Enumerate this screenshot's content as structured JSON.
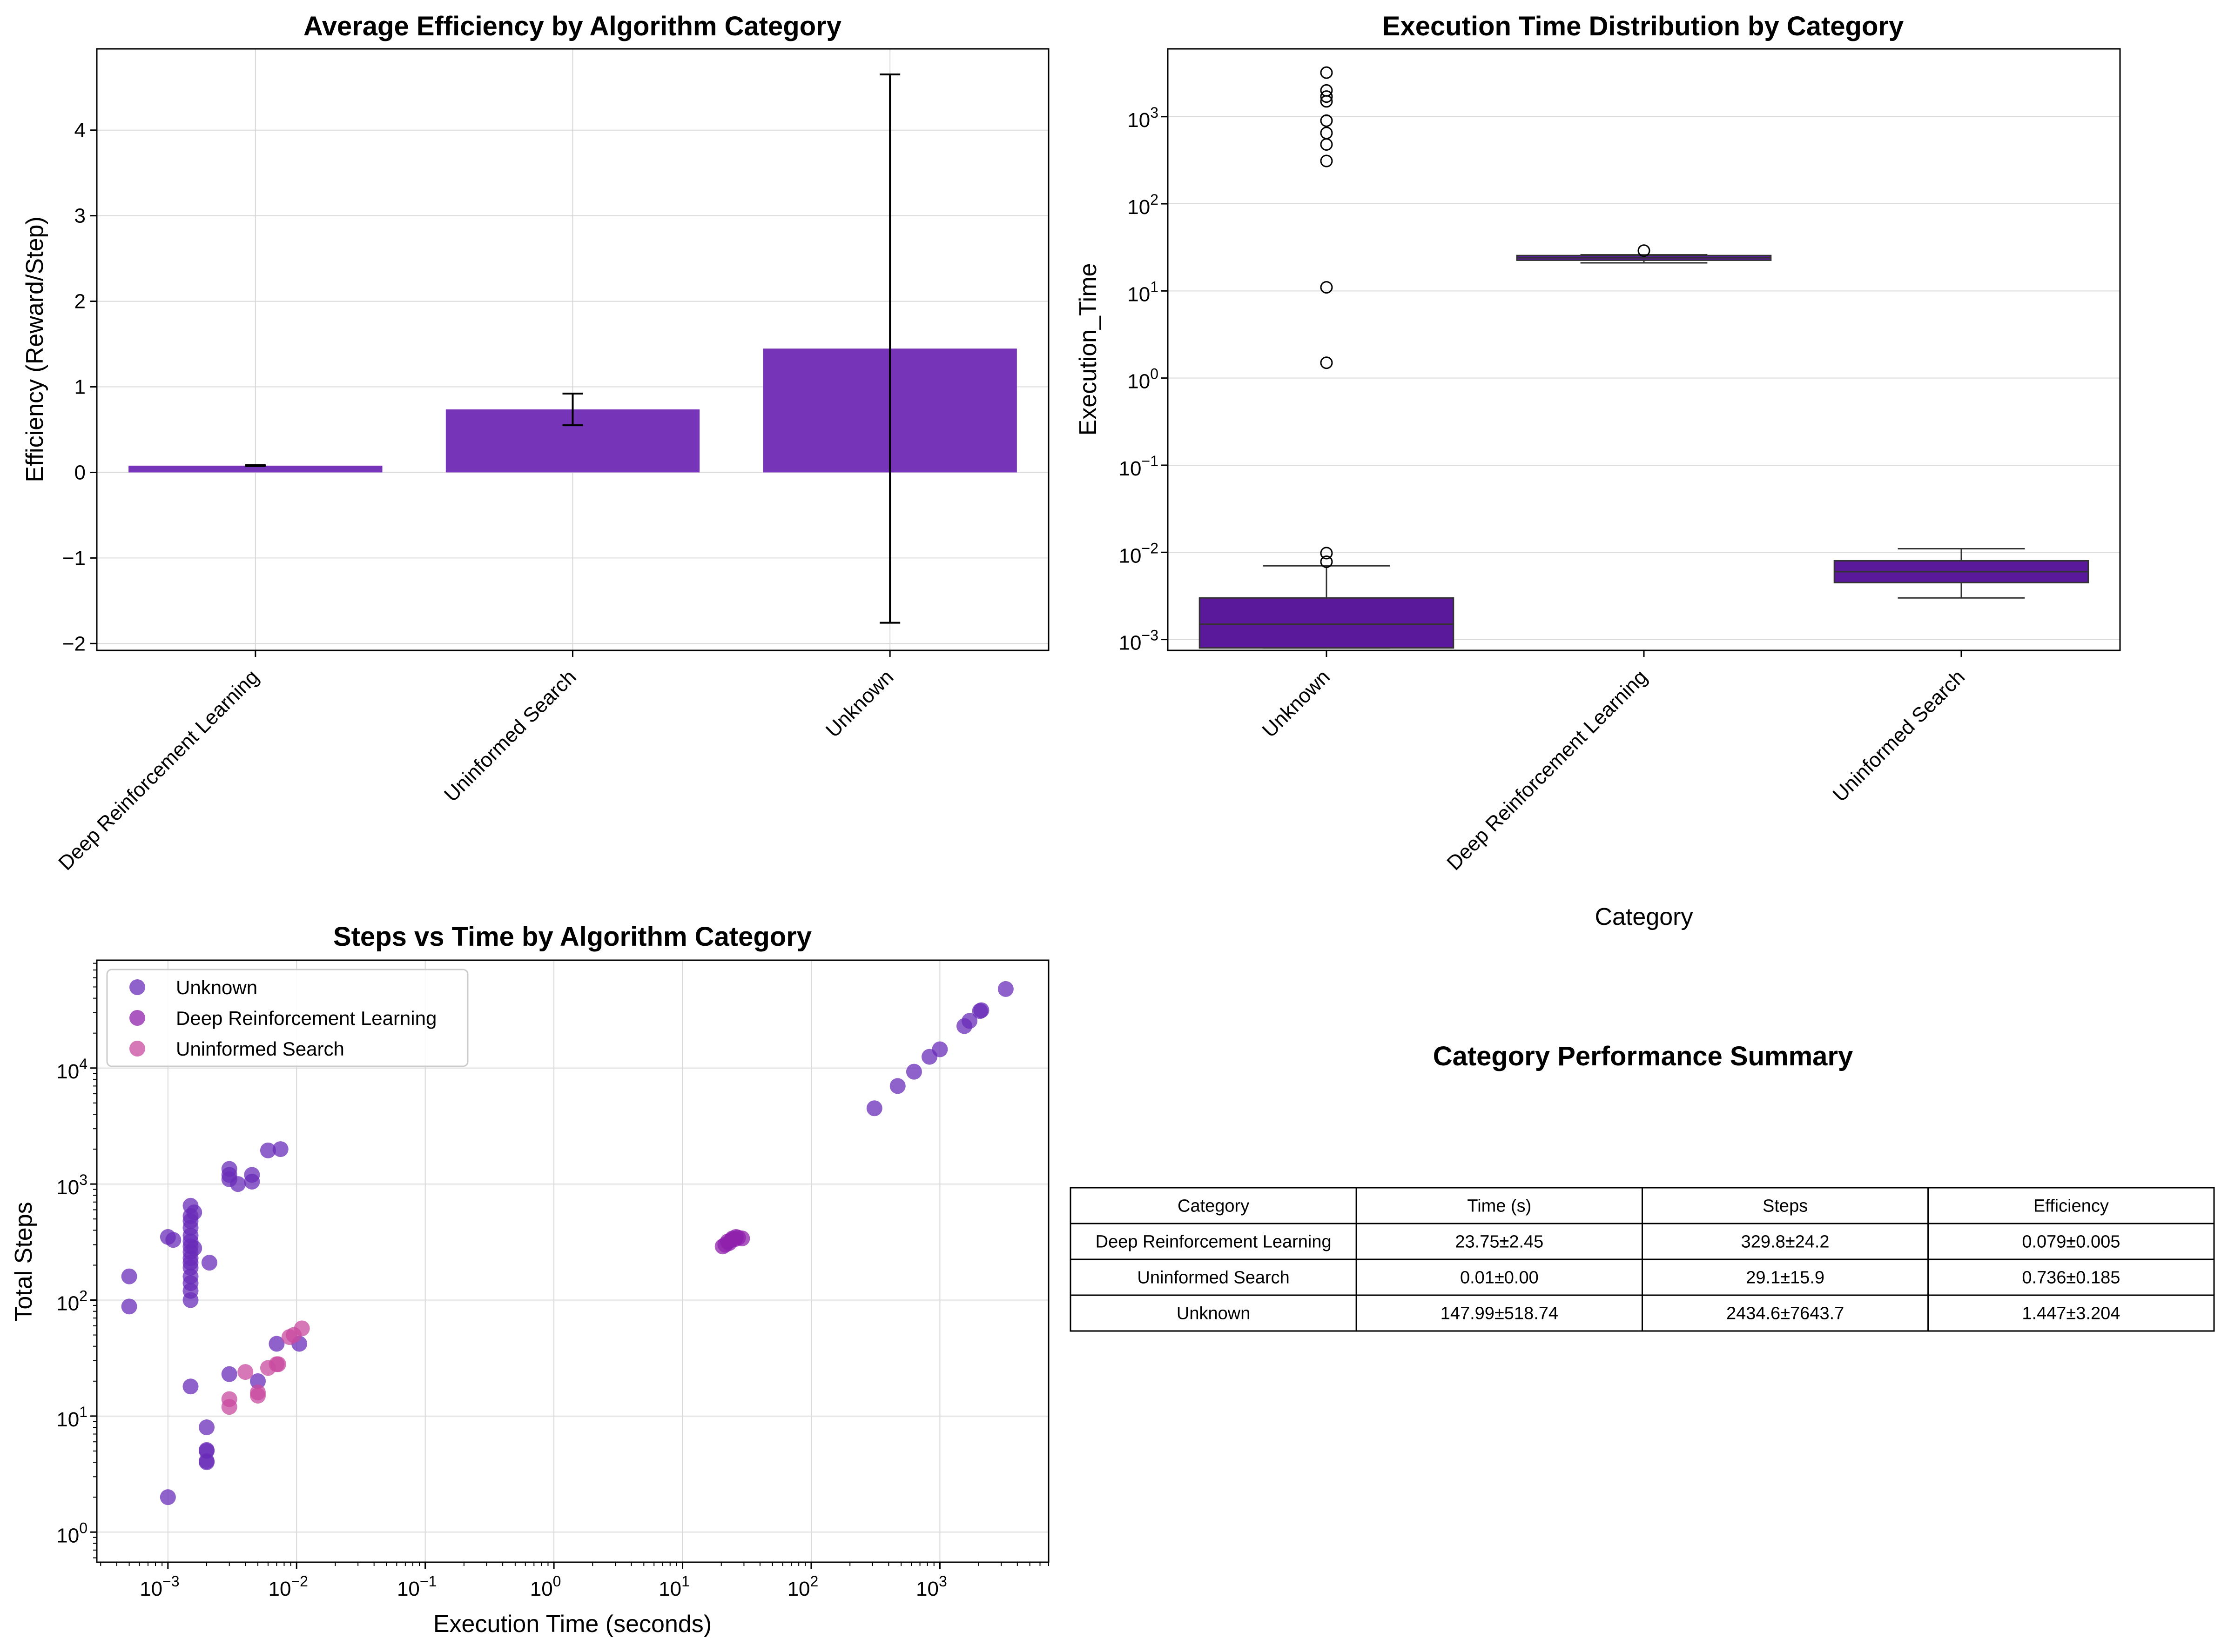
{
  "chart_data": [
    {
      "type": "bar",
      "title": "Average Efficiency by Algorithm Category",
      "xlabel": "",
      "ylabel": "Efficiency (Reward/Step)",
      "categories": [
        "Deep Reinforcement Learning",
        "Uninformed Search",
        "Unknown"
      ],
      "values": [
        0.079,
        0.736,
        1.447
      ],
      "errors": [
        0.005,
        0.185,
        3.204
      ],
      "ylim": [
        -2.08,
        4.95
      ],
      "yticks": [
        -2,
        -1,
        0,
        1,
        2,
        3,
        4
      ],
      "yticklabels": [
        "−2",
        "−1",
        "0",
        "1",
        "2",
        "3",
        "4"
      ],
      "bar_color": "#7634b8",
      "grid": true
    },
    {
      "type": "box",
      "title": "Execution Time Distribution by Category",
      "xlabel": "Category",
      "ylabel": "Execution_Time",
      "yscale": "log",
      "categories": [
        "Unknown",
        "Deep Reinforcement Learning",
        "Uninformed Search"
      ],
      "boxes": [
        {
          "category": "Unknown",
          "q1": 0.0008,
          "median": 0.0015,
          "q3": 0.003,
          "whisker_low": 0.0008,
          "whisker_high": 0.007,
          "outliers": [
            0.0078,
            0.0098,
            1.5,
            11,
            310,
            480,
            650,
            900,
            1500,
            1700,
            2000,
            3200
          ]
        },
        {
          "category": "Deep Reinforcement Learning",
          "q1": 22.5,
          "median": 24,
          "q3": 25.5,
          "whisker_low": 21,
          "whisker_high": 26,
          "outliers": [
            29
          ]
        },
        {
          "category": "Uninformed Search",
          "q1": 0.0045,
          "median": 0.006,
          "q3": 0.008,
          "whisker_low": 0.003,
          "whisker_high": 0.011,
          "outliers": []
        }
      ],
      "ylim": [
        0.00075,
        6000
      ],
      "box_color": "#5a189a",
      "grid": true
    },
    {
      "type": "scatter",
      "title": "Steps vs Time by Algorithm Category",
      "xlabel": "Execution Time (seconds)",
      "ylabel": "Total Steps",
      "xscale": "log",
      "yscale": "log",
      "xlim": [
        0.00028,
        7000
      ],
      "ylim": [
        0.55,
        85000
      ],
      "legend_position": "top-left",
      "series": [
        {
          "name": "Unknown",
          "color": "#6a2cb8",
          "points": [
            [
              0.0005,
              88
            ],
            [
              0.0005,
              160
            ],
            [
              0.001,
              2
            ],
            [
              0.001,
              350
            ],
            [
              0.0011,
              330
            ],
            [
              0.0015,
              18
            ],
            [
              0.0015,
              100
            ],
            [
              0.0015,
              120
            ],
            [
              0.0015,
              140
            ],
            [
              0.0015,
              160
            ],
            [
              0.0015,
              190
            ],
            [
              0.0015,
              210
            ],
            [
              0.0015,
              230
            ],
            [
              0.0015,
              260
            ],
            [
              0.0015,
              290
            ],
            [
              0.0015,
              320
            ],
            [
              0.0015,
              360
            ],
            [
              0.0015,
              420
            ],
            [
              0.0015,
              480
            ],
            [
              0.0015,
              530
            ],
            [
              0.0015,
              650
            ],
            [
              0.0016,
              280
            ],
            [
              0.0016,
              570
            ],
            [
              0.002,
              4
            ],
            [
              0.002,
              4.1
            ],
            [
              0.002,
              5
            ],
            [
              0.002,
              5.1
            ],
            [
              0.002,
              8
            ],
            [
              0.0021,
              210
            ],
            [
              0.003,
              23
            ],
            [
              0.003,
              1100
            ],
            [
              0.003,
              1200
            ],
            [
              0.003,
              1350
            ],
            [
              0.0035,
              1000
            ],
            [
              0.0045,
              1050
            ],
            [
              0.0045,
              1200
            ],
            [
              0.005,
              20
            ],
            [
              0.006,
              1950
            ],
            [
              0.007,
              42
            ],
            [
              0.0075,
              2000
            ],
            [
              0.0105,
              42
            ],
            [
              310,
              4500
            ],
            [
              470,
              7000
            ],
            [
              630,
              9300
            ],
            [
              830,
              12500
            ],
            [
              1000,
              14500
            ],
            [
              1550,
              23000
            ],
            [
              1700,
              25500
            ],
            [
              2050,
              31000
            ],
            [
              2100,
              31500
            ],
            [
              3250,
              48000
            ]
          ]
        },
        {
          "name": "Deep Reinforcement Learning",
          "color": "#8f22ac",
          "points": [
            [
              20.5,
              290
            ],
            [
              21.5,
              300
            ],
            [
              22.5,
              320
            ],
            [
              23,
              310
            ],
            [
              24,
              330
            ],
            [
              24.5,
              340
            ],
            [
              25.5,
              335
            ],
            [
              26,
              350
            ],
            [
              27,
              345
            ],
            [
              29,
              340
            ]
          ]
        },
        {
          "name": "Uninformed Search",
          "color": "#c84b9f",
          "points": [
            [
              0.003,
              12
            ],
            [
              0.003,
              14
            ],
            [
              0.004,
              24
            ],
            [
              0.005,
              15
            ],
            [
              0.005,
              16
            ],
            [
              0.006,
              26
            ],
            [
              0.007,
              28
            ],
            [
              0.0072,
              28
            ],
            [
              0.0088,
              48
            ],
            [
              0.0095,
              50
            ],
            [
              0.011,
              57
            ]
          ]
        }
      ],
      "grid": true
    }
  ],
  "summary": {
    "title": "Category Performance Summary",
    "columns": [
      "Category",
      "Time (s)",
      "Steps",
      "Efficiency"
    ],
    "rows": [
      [
        "Deep Reinforcement Learning",
        "23.75±2.45",
        "329.8±24.2",
        "0.079±0.005"
      ],
      [
        "Uninformed Search",
        "0.01±0.00",
        "29.1±15.9",
        "0.736±0.185"
      ],
      [
        "Unknown",
        "147.99±518.74",
        "2434.6±7643.7",
        "1.447±3.204"
      ]
    ]
  }
}
